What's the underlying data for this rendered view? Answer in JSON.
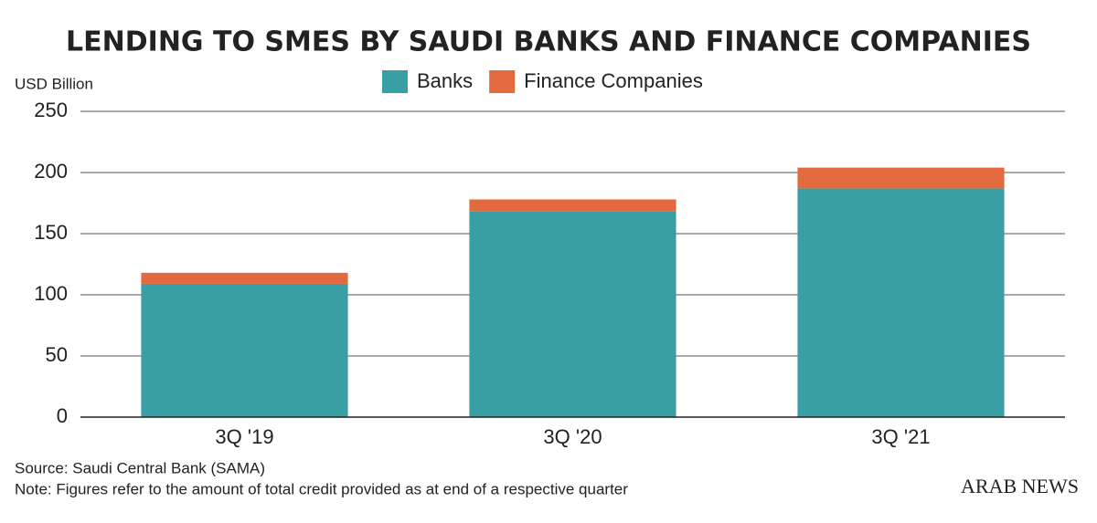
{
  "chart_data": {
    "type": "stacked_bar",
    "title": "LENDING TO SMES BY SAUDI BANKS AND FINANCE COMPANIES",
    "y_label": "USD Billion",
    "categories": [
      "3Q '19",
      "3Q '20",
      "3Q '21"
    ],
    "series": [
      {
        "name": "Banks",
        "color": "#3a9fa5",
        "values": [
          109,
          168,
          187
        ]
      },
      {
        "name": "Finance Companies",
        "color": "#e36a3e",
        "values": [
          9,
          10,
          17
        ]
      }
    ],
    "ylim": [
      0,
      250
    ],
    "yticks": [
      0,
      50,
      100,
      150,
      200,
      250
    ],
    "grid": true,
    "legend": "top",
    "source": "Source: Saudi Central Bank (SAMA)",
    "note": "Note: Figures refer to the amount of total credit provided as at end of a respective quarter",
    "logo": "ARAB NEWS"
  }
}
